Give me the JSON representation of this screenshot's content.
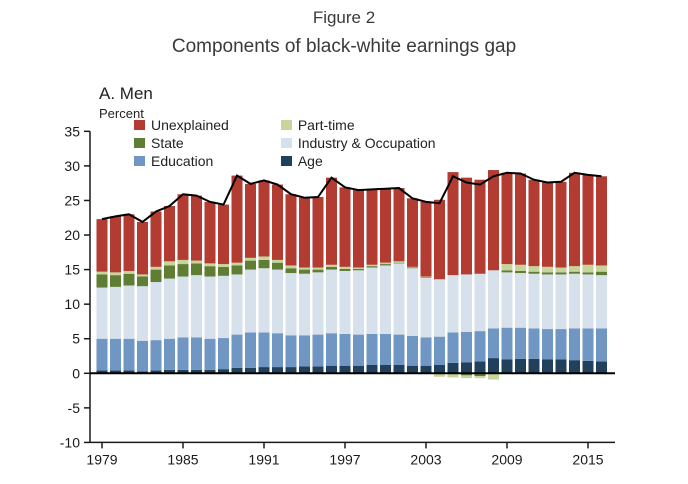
{
  "figure": {
    "label": "Figure 2",
    "title": "Components of black-white earnings gap",
    "panel": "A. Men",
    "unit_label": "Percent"
  },
  "colors": {
    "unexplained": "#b23b32",
    "state": "#5f7d33",
    "education": "#7096c4",
    "part_time": "#c7d59a",
    "industry_occupation": "#d6e1ec",
    "age": "#20405c",
    "total_line": "#000000",
    "axis": "#1a1a1a",
    "tick_text": "#1a1a1a"
  },
  "legend": {
    "columns": [
      [
        {
          "key": "unexplained",
          "label": "Unexplained"
        },
        {
          "key": "state",
          "label": "State"
        },
        {
          "key": "education",
          "label": "Education"
        }
      ],
      [
        {
          "key": "part_time",
          "label": "Part-time"
        },
        {
          "key": "industry_occupation",
          "label": "Industry & Occupation"
        },
        {
          "key": "age",
          "label": "Age"
        }
      ]
    ]
  },
  "chart_data": {
    "type": "bar",
    "subtype": "stacked-bars-with-total-line",
    "title": "Components of black-white earnings gap",
    "ylabel": "Percent",
    "xlabel": "",
    "ylim": [
      -10,
      35
    ],
    "ytick_step": 5,
    "xticks": [
      1979,
      1985,
      1991,
      1997,
      2003,
      2009,
      2015
    ],
    "grid": false,
    "legend_position": "top-left-two-columns",
    "total_line_is_sum_of_components": true,
    "x": [
      1979,
      1980,
      1981,
      1982,
      1983,
      1984,
      1985,
      1986,
      1987,
      1988,
      1989,
      1990,
      1991,
      1992,
      1993,
      1994,
      1995,
      1996,
      1997,
      1998,
      1999,
      2000,
      2001,
      2002,
      2003,
      2004,
      2005,
      2006,
      2007,
      2008,
      2009,
      2010,
      2011,
      2012,
      2013,
      2014,
      2015,
      2016
    ],
    "series": [
      {
        "key": "age",
        "name": "Age",
        "values": [
          0.4,
          0.4,
          0.4,
          0.3,
          0.4,
          0.5,
          0.5,
          0.5,
          0.5,
          0.6,
          0.8,
          0.8,
          0.9,
          0.9,
          0.9,
          1.0,
          1.0,
          1.1,
          1.1,
          1.1,
          1.2,
          1.2,
          1.2,
          1.1,
          1.1,
          1.2,
          1.5,
          1.6,
          1.7,
          2.2,
          2.0,
          2.1,
          2.1,
          2.0,
          2.0,
          1.9,
          1.8,
          1.7
        ]
      },
      {
        "key": "education",
        "name": "Education",
        "values": [
          4.6,
          4.6,
          4.6,
          4.4,
          4.4,
          4.5,
          4.7,
          4.7,
          4.5,
          4.5,
          4.8,
          5.1,
          5.0,
          4.9,
          4.6,
          4.5,
          4.6,
          4.7,
          4.6,
          4.5,
          4.5,
          4.5,
          4.4,
          4.3,
          4.1,
          4.1,
          4.4,
          4.4,
          4.4,
          4.3,
          4.6,
          4.5,
          4.4,
          4.4,
          4.4,
          4.6,
          4.7,
          4.8
        ]
      },
      {
        "key": "industry_occupation",
        "name": "Industry & Occupation",
        "values": [
          7.4,
          7.5,
          7.7,
          7.9,
          8.4,
          8.7,
          8.8,
          9.0,
          9.0,
          9.0,
          8.7,
          9.1,
          9.3,
          9.2,
          9.0,
          8.9,
          9.0,
          9.2,
          9.1,
          9.3,
          9.6,
          9.9,
          10.3,
          9.8,
          8.6,
          8.3,
          8.3,
          8.3,
          8.3,
          8.4,
          8.0,
          7.9,
          7.9,
          7.9,
          7.9,
          7.9,
          7.8,
          7.7
        ]
      },
      {
        "key": "state",
        "name": "State",
        "values": [
          1.9,
          1.7,
          1.7,
          1.4,
          1.8,
          1.9,
          1.8,
          1.7,
          1.5,
          1.3,
          1.3,
          1.3,
          1.2,
          1.0,
          0.7,
          0.6,
          0.4,
          0.4,
          0.3,
          0.2,
          0.2,
          0.2,
          0.1,
          0.1,
          0.1,
          0.0,
          0.0,
          -0.3,
          -0.4,
          -0.1,
          0.3,
          0.3,
          0.3,
          0.3,
          0.3,
          0.3,
          0.3,
          0.5
        ]
      },
      {
        "key": "part_time",
        "name": "Part-time",
        "values": [
          0.4,
          0.4,
          0.4,
          0.3,
          0.4,
          0.6,
          0.6,
          0.4,
          0.4,
          0.4,
          0.4,
          0.4,
          0.5,
          0.4,
          0.4,
          0.3,
          0.3,
          0.3,
          0.3,
          0.2,
          0.2,
          0.2,
          0.2,
          0.1,
          0.1,
          -0.5,
          -0.6,
          -0.4,
          -0.3,
          -0.8,
          0.9,
          0.9,
          0.8,
          0.8,
          0.7,
          0.8,
          1.1,
          0.9
        ]
      },
      {
        "key": "unexplained",
        "name": "Unexplained",
        "values": [
          7.6,
          8.1,
          8.2,
          7.6,
          8.0,
          8.0,
          9.5,
          9.4,
          8.9,
          8.6,
          12.6,
          10.7,
          11.0,
          10.9,
          10.3,
          10.1,
          10.2,
          12.6,
          11.5,
          11.2,
          10.9,
          10.7,
          10.6,
          9.9,
          10.8,
          11.5,
          14.9,
          14.0,
          13.6,
          14.5,
          13.2,
          13.2,
          12.5,
          12.2,
          12.4,
          13.5,
          13.0,
          12.9
        ]
      }
    ]
  }
}
